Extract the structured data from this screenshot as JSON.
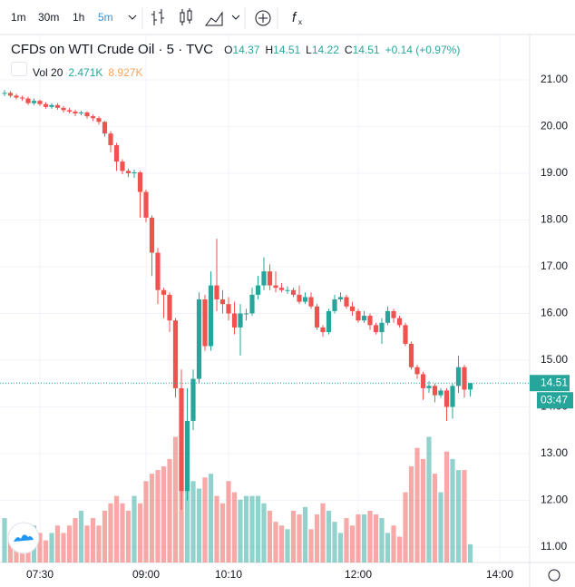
{
  "toolbar": {
    "intervals": [
      "1m",
      "30m",
      "1h",
      "5m"
    ]
  },
  "legend": {
    "title": "CFDs on WTI Crude Oil · 5 · TVC",
    "ohlc_labels": [
      "O",
      "H",
      "L",
      "C"
    ],
    "change": "+0.14 (+0.97%)",
    "volume_label": "Vol 20",
    "volume_values": [
      "2.471K",
      "8.927K"
    ]
  },
  "chart_data": {
    "type": "candlestick",
    "categories": [
      null,
      null,
      null,
      null,
      null,
      null,
      "07:30",
      null,
      null,
      null,
      null,
      null,
      null,
      null,
      null,
      null,
      null,
      null,
      null,
      null,
      null,
      null,
      null,
      null,
      "09:00",
      null,
      null,
      null,
      null,
      null,
      null,
      null,
      null,
      null,
      null,
      null,
      null,
      null,
      "10:10",
      null,
      null,
      null,
      null,
      null,
      null,
      null,
      null,
      null,
      null,
      null,
      null,
      null,
      null,
      null,
      null,
      null,
      null,
      null,
      null,
      null,
      "12:00",
      null,
      null,
      null,
      null,
      null,
      null,
      null,
      null,
      null,
      null,
      null,
      null,
      null,
      null,
      null,
      null,
      null,
      null,
      null,
      null,
      null,
      null,
      null,
      "14:00"
    ],
    "open": [
      20.7,
      20.72,
      20.66,
      20.62,
      20.6,
      20.5,
      20.55,
      20.48,
      20.42,
      20.46,
      20.4,
      20.35,
      20.32,
      20.28,
      20.3,
      20.22,
      20.18,
      20.1,
      19.85,
      19.6,
      19.25,
      19.05,
      19.0,
      19.02,
      18.6,
      18.05,
      17.3,
      16.5,
      16.4,
      15.85,
      14.4,
      12.2,
      13.7,
      14.6,
      16.3,
      15.3,
      16.6,
      16.3,
      16.2,
      16.0,
      15.7,
      16.0,
      16.0,
      16.4,
      16.6,
      16.9,
      16.6,
      16.55,
      16.5,
      16.5,
      16.4,
      16.25,
      16.35,
      16.15,
      15.7,
      15.6,
      16.05,
      16.3,
      16.35,
      16.15,
      16.05,
      15.85,
      15.95,
      15.75,
      15.6,
      15.8,
      16.05,
      15.9,
      15.75,
      15.35,
      14.85,
      14.7,
      14.4,
      14.45,
      14.25,
      14.35,
      14.0,
      14.45,
      14.85,
      14.37,
      null,
      null,
      null,
      null,
      null
    ],
    "high": [
      20.78,
      20.76,
      20.7,
      20.66,
      20.64,
      20.6,
      20.58,
      20.52,
      20.5,
      20.5,
      20.44,
      20.4,
      20.36,
      20.34,
      20.33,
      20.26,
      20.22,
      20.12,
      19.9,
      19.65,
      19.3,
      19.1,
      19.08,
      19.05,
      18.65,
      18.1,
      17.4,
      16.55,
      16.45,
      15.9,
      14.8,
      14.4,
      14.8,
      16.45,
      16.4,
      16.9,
      17.6,
      16.5,
      16.35,
      16.25,
      16.2,
      16.1,
      16.55,
      16.8,
      17.2,
      17.05,
      16.9,
      16.65,
      16.58,
      16.55,
      16.6,
      16.45,
      16.45,
      16.2,
      15.75,
      16.1,
      16.4,
      16.45,
      16.4,
      16.25,
      16.1,
      16.05,
      16.0,
      15.8,
      15.9,
      16.15,
      16.1,
      15.95,
      15.8,
      15.4,
      14.9,
      14.75,
      14.55,
      14.5,
      14.4,
      14.4,
      14.5,
      15.1,
      14.9,
      14.51,
      null,
      null,
      null,
      null,
      null
    ],
    "low": [
      20.65,
      20.62,
      20.58,
      20.55,
      20.46,
      20.46,
      20.44,
      20.38,
      20.38,
      20.36,
      20.3,
      20.28,
      20.22,
      20.24,
      20.17,
      20.12,
      20.04,
      19.78,
      19.45,
      19.05,
      18.98,
      18.92,
      18.9,
      18.05,
      17.95,
      16.8,
      16.2,
      15.9,
      15.6,
      14.2,
      11.8,
      12.0,
      13.5,
      14.5,
      15.2,
      15.2,
      16.05,
      16.0,
      15.85,
      15.55,
      15.1,
      15.85,
      15.95,
      16.3,
      16.5,
      16.5,
      16.45,
      16.45,
      16.42,
      16.35,
      16.2,
      16.2,
      16.1,
      15.65,
      15.5,
      15.55,
      16.0,
      16.25,
      16.1,
      15.95,
      15.8,
      15.8,
      15.65,
      15.55,
      15.35,
      15.75,
      15.8,
      15.7,
      15.3,
      14.8,
      14.6,
      14.15,
      14.3,
      14.1,
      14.2,
      13.7,
      13.75,
      14.3,
      14.2,
      14.22,
      null,
      null,
      null,
      null,
      null
    ],
    "close": [
      20.72,
      20.66,
      20.62,
      20.6,
      20.5,
      20.55,
      20.48,
      20.42,
      20.46,
      20.4,
      20.35,
      20.32,
      20.28,
      20.3,
      20.22,
      20.18,
      20.1,
      19.85,
      19.6,
      19.25,
      19.05,
      19.0,
      19.02,
      18.6,
      18.05,
      17.3,
      16.5,
      16.4,
      15.85,
      14.4,
      12.2,
      13.7,
      14.6,
      16.3,
      15.3,
      16.6,
      16.3,
      16.2,
      16.0,
      15.7,
      16.0,
      16.0,
      16.4,
      16.6,
      16.9,
      16.6,
      16.55,
      16.5,
      16.5,
      16.4,
      16.25,
      16.35,
      16.15,
      15.7,
      15.6,
      16.05,
      16.3,
      16.35,
      16.15,
      16.05,
      15.85,
      15.95,
      15.75,
      15.6,
      15.8,
      16.05,
      15.9,
      15.75,
      15.35,
      14.85,
      14.7,
      14.4,
      14.45,
      14.25,
      14.35,
      14.0,
      14.45,
      14.85,
      14.37,
      14.51,
      null,
      null,
      null,
      null,
      null
    ],
    "volume": [
      6,
      4,
      3.5,
      3,
      4,
      5,
      4,
      3,
      4,
      5,
      4,
      5,
      6,
      7,
      5,
      6,
      5,
      7,
      8,
      9,
      8,
      7,
      9,
      8,
      11,
      12,
      12.5,
      13,
      14,
      17,
      15,
      14,
      11,
      10,
      11.5,
      12,
      9,
      8,
      11,
      9.5,
      8.5,
      9,
      9,
      9,
      8,
      7,
      5.5,
      5,
      4.5,
      7,
      6.5,
      7.5,
      4.5,
      6.5,
      8,
      7,
      5.5,
      4,
      6,
      5,
      6.5,
      6.5,
      7,
      6.5,
      6,
      4,
      5,
      3.5,
      9.5,
      13,
      15.5,
      14,
      17,
      12,
      9.5,
      15,
      14,
      12.5,
      12.5,
      2.471,
      null,
      null,
      null,
      null,
      null
    ],
    "ylim": [
      10.67,
      21.97
    ],
    "yticks": [
      {
        "value": 11,
        "label": "11.00"
      },
      {
        "value": 12,
        "label": "12.00"
      },
      {
        "value": 13,
        "label": "13.00"
      },
      {
        "value": 14,
        "label": "14.00"
      },
      {
        "value": 15,
        "label": "15.00"
      },
      {
        "value": 16,
        "label": "16.00"
      },
      {
        "value": 17,
        "label": "17.00"
      },
      {
        "value": 18,
        "label": "18.00"
      },
      {
        "value": 19,
        "label": "19.00"
      },
      {
        "value": 20,
        "label": "20.00"
      },
      {
        "value": 21,
        "label": "21.00"
      }
    ],
    "y2lim": [
      0,
      71.4
    ],
    "up_color": "#26a69a",
    "down_color": "#ef5350",
    "countdown": "03:47",
    "grid": true
  }
}
